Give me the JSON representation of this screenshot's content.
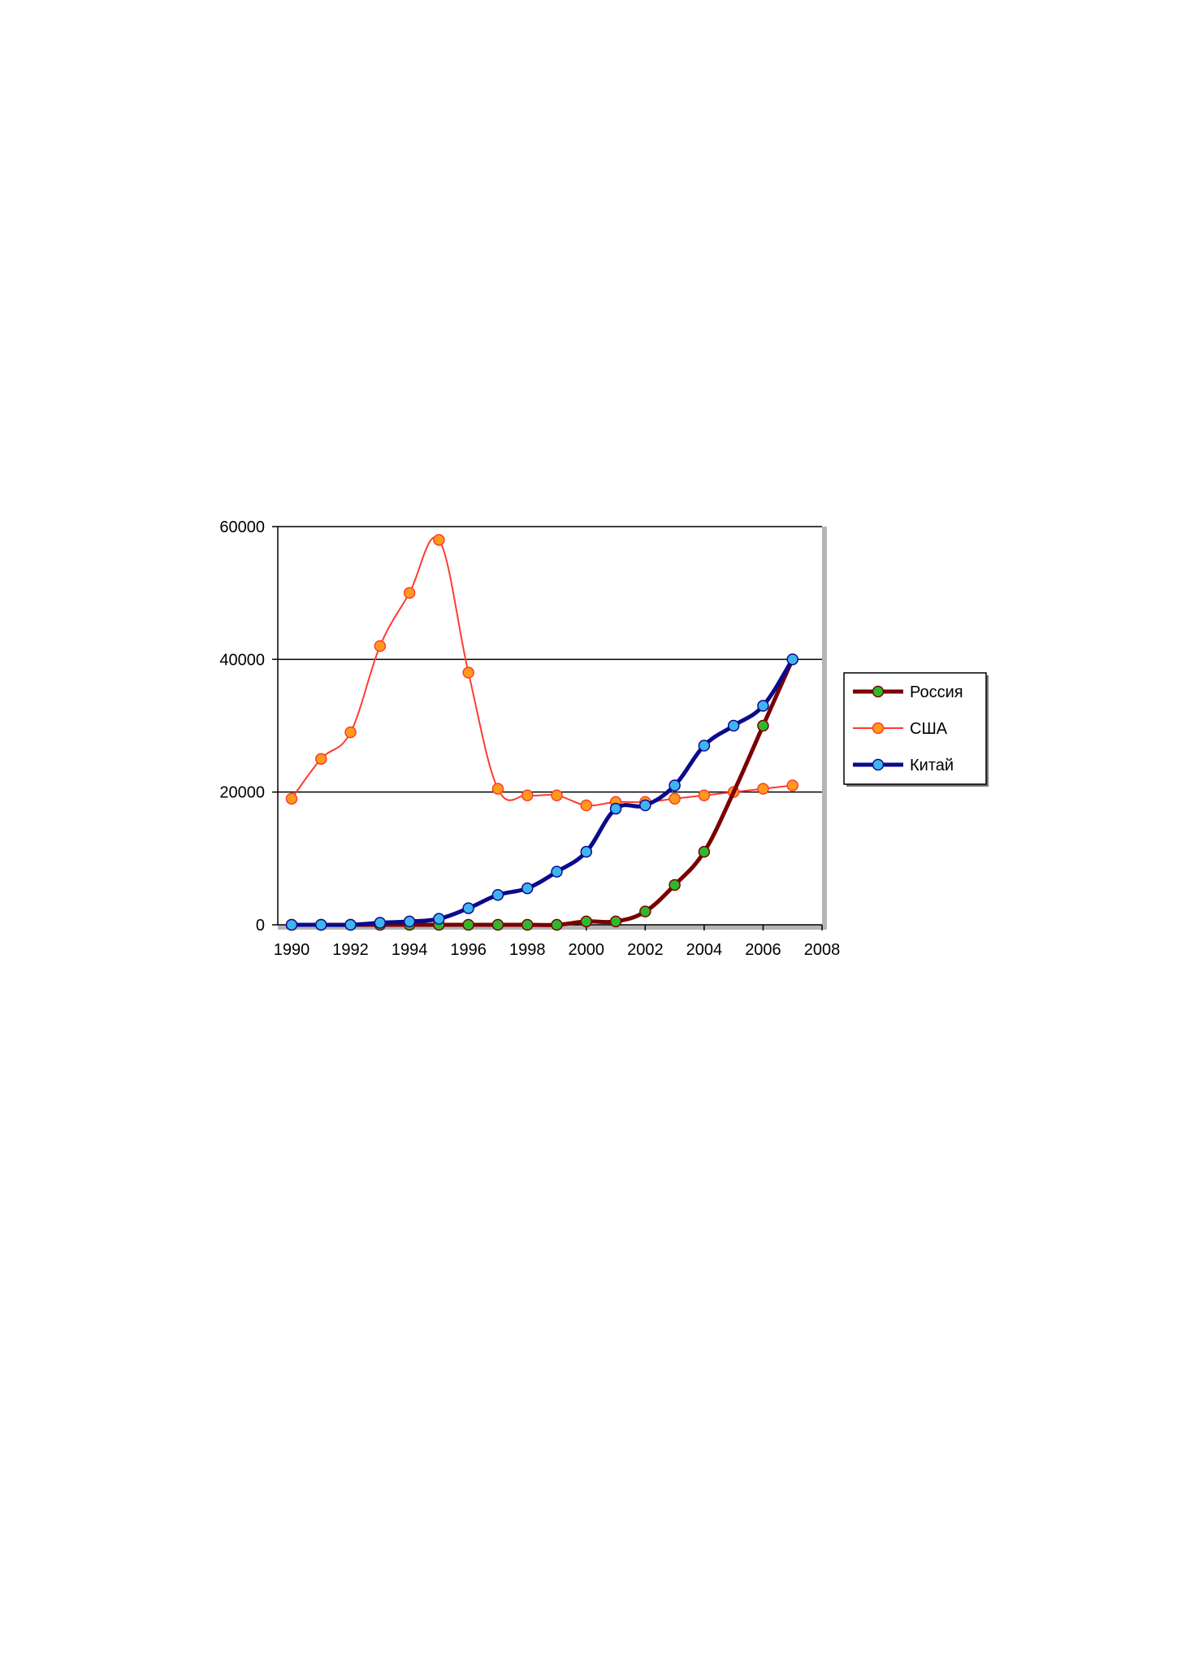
{
  "chart_data": {
    "type": "line",
    "title": "",
    "xlabel": "",
    "ylabel": "",
    "xlim": [
      1990,
      2008
    ],
    "ylim": [
      0,
      60000
    ],
    "x_ticks": [
      "1990",
      "1992",
      "1994",
      "1996",
      "1998",
      "2000",
      "2002",
      "2004",
      "2006",
      "2008"
    ],
    "y_ticks": [
      "0",
      "20000",
      "40000",
      "60000"
    ],
    "grid": "horizontal",
    "legend_position": "right",
    "series": [
      {
        "name": "Россия",
        "line_color": "#7a0000",
        "marker_color": "#2eb82e",
        "line_weight": "thick",
        "x": [
          1990,
          1991,
          1992,
          1993,
          1994,
          1995,
          1996,
          1997,
          1998,
          1999,
          2000,
          2001,
          2002,
          2003,
          2004,
          2005,
          2006,
          2007
        ],
        "y": [
          0,
          0,
          0,
          0,
          0,
          0,
          0,
          0,
          0,
          0,
          500,
          500,
          2000,
          6000,
          11000,
          20000,
          30000,
          40000
        ],
        "markers": [
          true,
          true,
          true,
          true,
          true,
          true,
          true,
          true,
          true,
          true,
          true,
          true,
          true,
          true,
          true,
          false,
          true,
          false
        ]
      },
      {
        "name": "США",
        "line_color": "#ff3b2f",
        "marker_color": "#ff9a1a",
        "line_weight": "thin",
        "x": [
          1990,
          1991,
          1992,
          1993,
          1994,
          1995,
          1996,
          1997,
          1998,
          1999,
          2000,
          2001,
          2002,
          2003,
          2004,
          2005,
          2006,
          2007
        ],
        "y": [
          19000,
          25000,
          29000,
          42000,
          50000,
          58000,
          38000,
          20500,
          19500,
          19500,
          18000,
          18500,
          18500,
          19000,
          19500,
          20000,
          20500,
          21000
        ],
        "markers": [
          true,
          true,
          true,
          true,
          true,
          true,
          true,
          true,
          true,
          true,
          true,
          true,
          true,
          true,
          true,
          true,
          true,
          true
        ]
      },
      {
        "name": "Китай",
        "line_color": "#0a0a8c",
        "marker_color": "#3fb5f0",
        "line_weight": "thick",
        "x": [
          1990,
          1991,
          1992,
          1993,
          1994,
          1995,
          1996,
          1997,
          1998,
          1999,
          2000,
          2001,
          2002,
          2003,
          2004,
          2005,
          2006,
          2007
        ],
        "y": [
          0,
          0,
          0,
          300,
          500,
          900,
          2500,
          4500,
          5500,
          8000,
          11000,
          17500,
          18000,
          21000,
          27000,
          30000,
          33000,
          40000
        ],
        "markers": [
          true,
          true,
          true,
          true,
          true,
          true,
          true,
          true,
          true,
          true,
          true,
          true,
          true,
          true,
          true,
          true,
          true,
          true
        ]
      }
    ]
  }
}
